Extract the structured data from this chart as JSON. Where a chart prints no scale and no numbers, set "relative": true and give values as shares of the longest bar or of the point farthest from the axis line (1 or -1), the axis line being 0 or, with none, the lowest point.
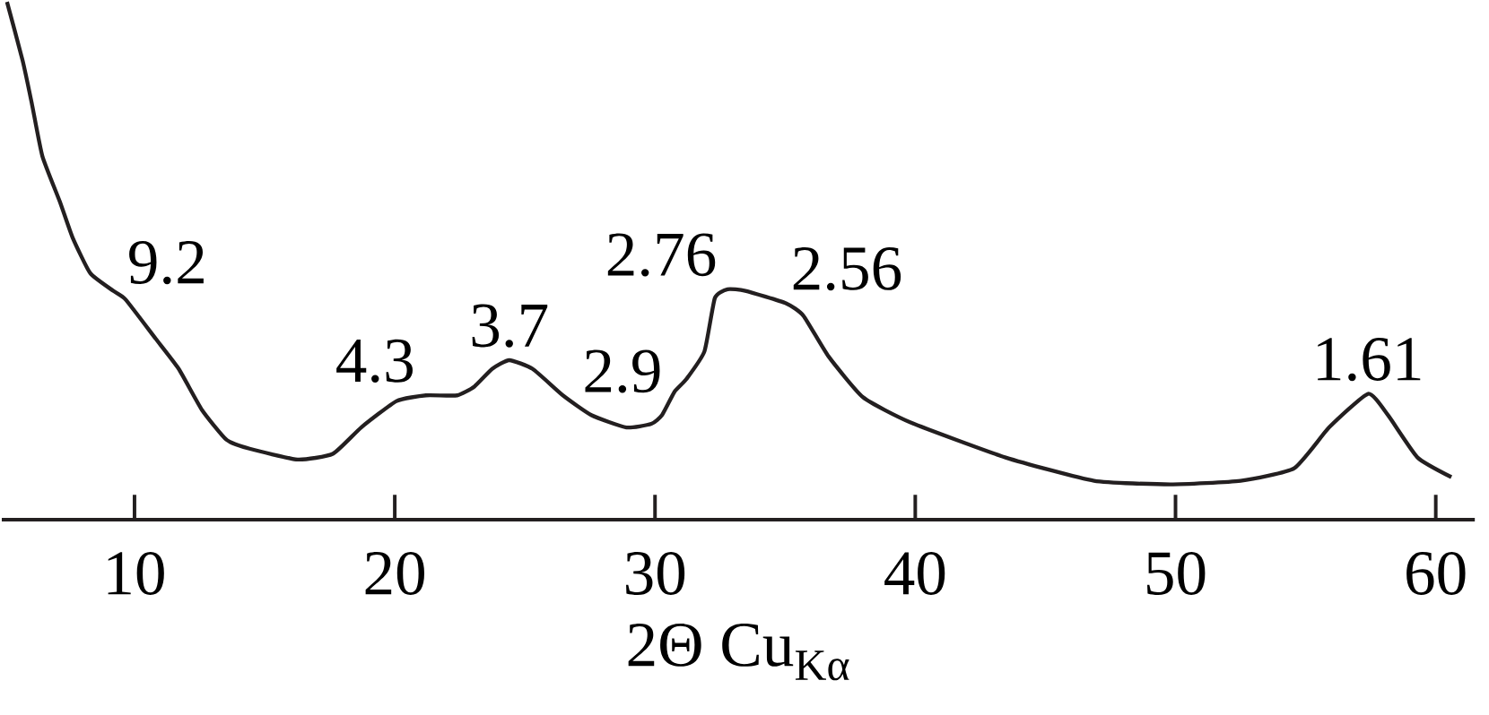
{
  "chart_data": {
    "type": "line",
    "relative": true,
    "xlabel": "2Θ Cu$_{Kα}$",
    "xlim": [
      4.9,
      61.5
    ],
    "xticks": [
      10,
      20,
      30,
      40,
      50,
      60
    ],
    "color": "#231f20",
    "grid": false,
    "marker": "none",
    "line_style": "solid",
    "x": [
      5.1,
      5.7,
      6.05,
      6.46,
      7.14,
      7.62,
      8.3,
      9.18,
      9.66,
      10.82,
      11.7,
      12.59,
      13.54,
      14.42,
      16.26,
      17.62,
      18.71,
      20.07,
      21.2,
      22.4,
      23.06,
      23.74,
      24.4,
      25.3,
      26.46,
      27.55,
      28.9,
      29.86,
      30.27,
      30.75,
      31.2,
      31.9,
      32.3,
      32.79,
      33.47,
      35.03,
      35.7,
      36.67,
      38.0,
      39.8,
      43.47,
      46.87,
      49.8,
      52.5,
      54.56,
      55.9,
      57.4,
      58.16,
      59.3,
      60.6
    ],
    "values": [
      1.0,
      0.887,
      0.805,
      0.702,
      0.613,
      0.545,
      0.476,
      0.442,
      0.425,
      0.349,
      0.291,
      0.212,
      0.154,
      0.137,
      0.116,
      0.127,
      0.178,
      0.229,
      0.24,
      0.24,
      0.257,
      0.291,
      0.308,
      0.291,
      0.24,
      0.202,
      0.178,
      0.185,
      0.202,
      0.247,
      0.271,
      0.325,
      0.428,
      0.445,
      0.442,
      0.418,
      0.394,
      0.315,
      0.236,
      0.188,
      0.12,
      0.075,
      0.068,
      0.075,
      0.099,
      0.178,
      0.243,
      0.202,
      0.12,
      0.082
    ],
    "annotations": [
      {
        "text": "9.2",
        "x": 9.5,
        "y": 0.43
      },
      {
        "text": "4.3",
        "x": 21,
        "y": 0.24
      },
      {
        "text": "3.7",
        "x": 24.4,
        "y": 0.308
      },
      {
        "text": "2.9",
        "x": 30.5,
        "y": 0.22
      },
      {
        "text": "2.76",
        "x": 32.6,
        "y": 0.445
      },
      {
        "text": "2.56",
        "x": 35,
        "y": 0.418
      },
      {
        "text": "1.61",
        "x": 57.4,
        "y": 0.243
      }
    ]
  }
}
